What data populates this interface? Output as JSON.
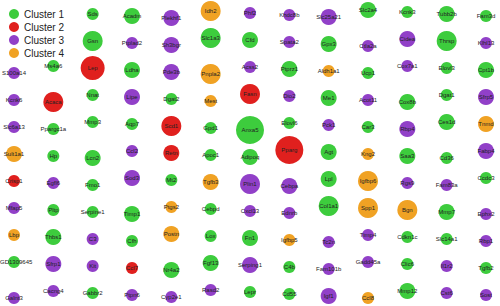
{
  "chart_data": {
    "type": "network",
    "legend": "upper left",
    "series": [
      {
        "name": "Cluster 1",
        "color": "#3dcc3d"
      },
      {
        "name": "Cluster 2",
        "color": "#e0201e"
      },
      {
        "name": "Cluster 3",
        "color": "#9140c8"
      },
      {
        "name": "Cluster 4",
        "color": "#f0a224"
      }
    ],
    "nodes": [
      {
        "label": "Sds",
        "cluster": "Cluster 1",
        "size": 1
      },
      {
        "label": "Acadm",
        "cluster": "Cluster 1",
        "size": 2
      },
      {
        "label": "Plekhf1",
        "cluster": "Cluster 3",
        "size": 2
      },
      {
        "label": "Idh2",
        "cluster": "Cluster 4",
        "size": 3
      },
      {
        "label": "Phf2",
        "cluster": "Cluster 3",
        "size": 1
      },
      {
        "label": "Khdc8b",
        "cluster": "Cluster 3",
        "size": 1
      },
      {
        "label": "Slc25a21",
        "cluster": "Cluster 3",
        "size": 2
      },
      {
        "label": "Slc2a4",
        "cluster": "Cluster 1",
        "size": 2
      },
      {
        "label": "Kcnk3",
        "cluster": "Cluster 1",
        "size": 1
      },
      {
        "label": "Tubb2b",
        "cluster": "Cluster 1",
        "size": 2
      },
      {
        "label": "Fam3d",
        "cluster": "Cluster 1",
        "size": 1
      },
      {
        "label": "Gsn",
        "cluster": "Cluster 1",
        "size": 3
      },
      {
        "label": "Ptplad2",
        "cluster": "Cluster 3",
        "size": 1
      },
      {
        "label": "Sh3bgr",
        "cluster": "Cluster 3",
        "size": 2
      },
      {
        "label": "Slc1a3",
        "cluster": "Cluster 1",
        "size": 3
      },
      {
        "label": "Cfd",
        "cluster": "Cluster 1",
        "size": 2
      },
      {
        "label": "Spata2",
        "cluster": "Cluster 3",
        "size": 1
      },
      {
        "label": "Gpx3",
        "cluster": "Cluster 1",
        "size": 2
      },
      {
        "label": "Ctla2a",
        "cluster": "Cluster 3",
        "size": 1
      },
      {
        "label": "Cidea",
        "cluster": "Cluster 3",
        "size": 2
      },
      {
        "label": "Thrsp",
        "cluster": "Cluster 1",
        "size": 3
      },
      {
        "label": "Klhl13",
        "cluster": "Cluster 3",
        "size": 1
      },
      {
        "label": "S100a14",
        "cluster": "Cluster 3",
        "size": 1
      },
      {
        "label": "Ms4a6",
        "cluster": "Cluster 1",
        "size": 1
      },
      {
        "label": "Lep",
        "cluster": "Cluster 2",
        "size": 4
      },
      {
        "label": "Ldha",
        "cluster": "Cluster 1",
        "size": 2
      },
      {
        "label": "Pde3b",
        "cluster": "Cluster 3",
        "size": 2
      },
      {
        "label": "Pnpla2",
        "cluster": "Cluster 4",
        "size": 3
      },
      {
        "label": "Acss2",
        "cluster": "Cluster 3",
        "size": 1
      },
      {
        "label": "Ptprz1",
        "cluster": "Cluster 1",
        "size": 2
      },
      {
        "label": "Aldh1a1",
        "cluster": "Cluster 4",
        "size": 1
      },
      {
        "label": "Ucp1",
        "cluster": "Cluster 1",
        "size": 1
      },
      {
        "label": "Cox7a1",
        "cluster": "Cluster 3",
        "size": 1
      },
      {
        "label": "Elovl3",
        "cluster": "Cluster 1",
        "size": 1
      },
      {
        "label": "Cpt1b",
        "cluster": "Cluster 1",
        "size": 2
      },
      {
        "label": "Kcnk6",
        "cluster": "Cluster 3",
        "size": 1
      },
      {
        "label": "Acaca",
        "cluster": "Cluster 2",
        "size": 3
      },
      {
        "label": "Nnat",
        "cluster": "Cluster 1",
        "size": 1
      },
      {
        "label": "Lipe",
        "cluster": "Cluster 3",
        "size": 2
      },
      {
        "label": "Dgat2",
        "cluster": "Cluster 1",
        "size": 1
      },
      {
        "label": "Mest",
        "cluster": "Cluster 4",
        "size": 1
      },
      {
        "label": "Fasn",
        "cluster": "Cluster 2",
        "size": 3
      },
      {
        "label": "Dio2",
        "cluster": "Cluster 3",
        "size": 1
      },
      {
        "label": "Me1",
        "cluster": "Cluster 1",
        "size": 2
      },
      {
        "label": "Acot11",
        "cluster": "Cluster 3",
        "size": 1
      },
      {
        "label": "Cox8b",
        "cluster": "Cluster 1",
        "size": 2
      },
      {
        "label": "Dgat1",
        "cluster": "Cluster 1",
        "size": 1
      },
      {
        "label": "Sfrp5",
        "cluster": "Cluster 3",
        "size": 2
      },
      {
        "label": "Slc6a13",
        "cluster": "Cluster 3",
        "size": 1
      },
      {
        "label": "Ppargc1a",
        "cluster": "Cluster 1",
        "size": 1
      },
      {
        "label": "Mmp3",
        "cluster": "Cluster 1",
        "size": 1
      },
      {
        "label": "Aqp7",
        "cluster": "Cluster 1",
        "size": 1
      },
      {
        "label": "Scd1",
        "cluster": "Cluster 2",
        "size": 3
      },
      {
        "label": "Gpd1",
        "cluster": "Cluster 1",
        "size": 1
      },
      {
        "label": "Anxa5",
        "cluster": "Cluster 1",
        "size": 5
      },
      {
        "label": "Elovl6",
        "cluster": "Cluster 1",
        "size": 1
      },
      {
        "label": "Pck1",
        "cluster": "Cluster 3",
        "size": 1
      },
      {
        "label": "Car3",
        "cluster": "Cluster 1",
        "size": 1
      },
      {
        "label": "Rbp4",
        "cluster": "Cluster 3",
        "size": 2
      },
      {
        "label": "Ces1d",
        "cluster": "Cluster 1",
        "size": 2
      },
      {
        "label": "Tnmd",
        "cluster": "Cluster 4",
        "size": 2
      },
      {
        "label": "Sult1a1",
        "cluster": "Cluster 4",
        "size": 2
      },
      {
        "label": "Hp",
        "cluster": "Cluster 1",
        "size": 1
      },
      {
        "label": "Lcn2",
        "cluster": "Cluster 1",
        "size": 2
      },
      {
        "label": "Ccl2",
        "cluster": "Cluster 3",
        "size": 1
      },
      {
        "label": "Retn",
        "cluster": "Cluster 2",
        "size": 2
      },
      {
        "label": "Apoc1",
        "cluster": "Cluster 1",
        "size": 1
      },
      {
        "label": "Adipoq",
        "cluster": "Cluster 1",
        "size": 2
      },
      {
        "label": "Pparg",
        "cluster": "Cluster 2",
        "size": 5
      },
      {
        "label": "Agt",
        "cluster": "Cluster 1",
        "size": 2
      },
      {
        "label": "Kng2",
        "cluster": "Cluster 4",
        "size": 1
      },
      {
        "label": "Saa3",
        "cluster": "Cluster 1",
        "size": 2
      },
      {
        "label": "Cd36",
        "cluster": "Cluster 1",
        "size": 1
      },
      {
        "label": "Fabp4",
        "cluster": "Cluster 3",
        "size": 2
      },
      {
        "label": "Crisp1",
        "cluster": "Cluster 2",
        "size": 1
      },
      {
        "label": "Egfl6",
        "cluster": "Cluster 3",
        "size": 1
      },
      {
        "label": "Fmo1",
        "cluster": "Cluster 1",
        "size": 1
      },
      {
        "label": "Sod3",
        "cluster": "Cluster 3",
        "size": 2
      },
      {
        "label": "Mt2",
        "cluster": "Cluster 1",
        "size": 1
      },
      {
        "label": "Tgfb3",
        "cluster": "Cluster 4",
        "size": 2
      },
      {
        "label": "Plin1",
        "cluster": "Cluster 3",
        "size": 3
      },
      {
        "label": "Cebpa",
        "cluster": "Cluster 3",
        "size": 2
      },
      {
        "label": "Lpl",
        "cluster": "Cluster 1",
        "size": 2
      },
      {
        "label": "Igfbp6",
        "cluster": "Cluster 4",
        "size": 3
      },
      {
        "label": "Rgs9",
        "cluster": "Cluster 3",
        "size": 1
      },
      {
        "label": "Fam83a",
        "cluster": "Cluster 3",
        "size": 1
      },
      {
        "label": "Ccdc3",
        "cluster": "Cluster 1",
        "size": 1
      },
      {
        "label": "Mfap5",
        "cluster": "Cluster 3",
        "size": 1
      },
      {
        "label": "Pltp",
        "cluster": "Cluster 1",
        "size": 1
      },
      {
        "label": "Serpine1",
        "cluster": "Cluster 1",
        "size": 1
      },
      {
        "label": "Timp1",
        "cluster": "Cluster 1",
        "size": 2
      },
      {
        "label": "Ptgs2",
        "cluster": "Cluster 4",
        "size": 1
      },
      {
        "label": "Cebpd",
        "cluster": "Cluster 1",
        "size": 1
      },
      {
        "label": "Cxcl13",
        "cluster": "Cluster 3",
        "size": 1
      },
      {
        "label": "Ednrb",
        "cluster": "Cluster 3",
        "size": 1
      },
      {
        "label": "Col1a1",
        "cluster": "Cluster 1",
        "size": 3
      },
      {
        "label": "Spp1",
        "cluster": "Cluster 4",
        "size": 3
      },
      {
        "label": "Bgn",
        "cluster": "Cluster 4",
        "size": 3
      },
      {
        "label": "Mmp7",
        "cluster": "Cluster 1",
        "size": 2
      },
      {
        "label": "Ephx2",
        "cluster": "Cluster 3",
        "size": 1
      },
      {
        "label": "Lbp",
        "cluster": "Cluster 4",
        "size": 1
      },
      {
        "label": "Thbs1",
        "cluster": "Cluster 1",
        "size": 2
      },
      {
        "label": "C3",
        "cluster": "Cluster 3",
        "size": 1
      },
      {
        "label": "Cfh",
        "cluster": "Cluster 1",
        "size": 1
      },
      {
        "label": "Postn",
        "cluster": "Cluster 4",
        "size": 2
      },
      {
        "label": "Lox",
        "cluster": "Cluster 1",
        "size": 1
      },
      {
        "label": "Fn1",
        "cluster": "Cluster 1",
        "size": 2
      },
      {
        "label": "Igfbp5",
        "cluster": "Cluster 4",
        "size": 1
      },
      {
        "label": "Tc2n",
        "cluster": "Cluster 3",
        "size": 1
      },
      {
        "label": "Timp4",
        "cluster": "Cluster 3",
        "size": 1
      },
      {
        "label": "Cdkn1c",
        "cluster": "Cluster 1",
        "size": 1
      },
      {
        "label": "Slc14a1",
        "cluster": "Cluster 1",
        "size": 1
      },
      {
        "label": "Rbp1",
        "cluster": "Cluster 3",
        "size": 1
      },
      {
        "label": "RGD1309645",
        "cluster": "Cluster 1",
        "size": 1
      },
      {
        "label": "Sfrp1",
        "cluster": "Cluster 3",
        "size": 2
      },
      {
        "label": "Kit",
        "cluster": "Cluster 3",
        "size": 1
      },
      {
        "label": "Ccl7",
        "cluster": "Cluster 2",
        "size": 1
      },
      {
        "label": "Nr4a2",
        "cluster": "Cluster 1",
        "size": 2
      },
      {
        "label": "Fgf13",
        "cluster": "Cluster 1",
        "size": 2
      },
      {
        "label": "Serping1",
        "cluster": "Cluster 3",
        "size": 2
      },
      {
        "label": "C4b",
        "cluster": "Cluster 1",
        "size": 1
      },
      {
        "label": "Fam101b",
        "cluster": "Cluster 3",
        "size": 1
      },
      {
        "label": "Gadd45a",
        "cluster": "Cluster 3",
        "size": 1
      },
      {
        "label": "Clic6",
        "cluster": "Cluster 1",
        "size": 1
      },
      {
        "label": "Il1r2",
        "cluster": "Cluster 3",
        "size": 1
      },
      {
        "label": "Tgfb2",
        "cluster": "Cluster 1",
        "size": 1
      },
      {
        "label": "Galnt3",
        "cluster": "Cluster 3",
        "size": 1
      },
      {
        "label": "Cacng4",
        "cluster": "Cluster 3",
        "size": 1
      },
      {
        "label": "Gabbr2",
        "cluster": "Cluster 1",
        "size": 1
      },
      {
        "label": "Ptpn6",
        "cluster": "Cluster 3",
        "size": 1
      },
      {
        "label": "Cyp2e1",
        "cluster": "Cluster 3",
        "size": 1
      },
      {
        "label": "Rasd2",
        "cluster": "Cluster 3",
        "size": 1
      },
      {
        "label": "Lepr",
        "cluster": "Cluster 1",
        "size": 1
      },
      {
        "label": "Cd55",
        "cluster": "Cluster 1",
        "size": 1
      },
      {
        "label": "Igf1",
        "cluster": "Cluster 3",
        "size": 2
      },
      {
        "label": "Ccl8",
        "cluster": "Cluster 4",
        "size": 1
      },
      {
        "label": "Mmp12",
        "cluster": "Cluster 1",
        "size": 2
      },
      {
        "label": "Cst6",
        "cluster": "Cluster 3",
        "size": 1
      },
      {
        "label": "Sost",
        "cluster": "Cluster 3",
        "size": 1
      }
    ]
  }
}
